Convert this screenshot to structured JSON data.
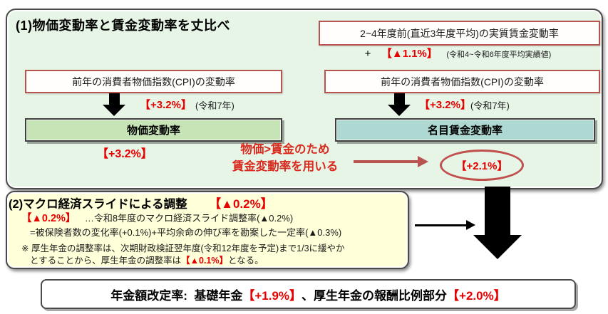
{
  "colors": {
    "section1_bg": "#e7f5e7",
    "section2_bg": "#ffffd9",
    "price_box_bg": "#c6e4b5",
    "wage_box_bg": "#aed9d2",
    "white_box_border": "#b85450",
    "red_text": "#e60000",
    "red_arrow": "#b85450",
    "oval_border": "#c0504d",
    "black": "#000000"
  },
  "section1": {
    "title": "(1)物価変動率と賃金変動率を丈比べ",
    "real_wage_box": "2~4年度前(直近3年度平均)の実質賃金変動率",
    "plus_sign": "+",
    "real_wage_value": "【▲1.1%】",
    "real_wage_note": "(令和4~令和6年度平均実績値)",
    "cpi_left_box": "前年の消費者物価指数(CPI)の変動率",
    "cpi_right_box": "前年の消費者物価指数(CPI)の変動率",
    "cpi_left_value": "【+3.2%】",
    "cpi_left_note": "(令和7年)",
    "cpi_right_value": "【+3.2%】",
    "cpi_right_note": "(令和7年)",
    "price_box": "物価変動率",
    "wage_box": "名目賃金変動率",
    "price_value": "【+3.2%】",
    "decision_line1": "物価>賃金のため",
    "decision_line2": "賃金変動率を用いる",
    "wage_value": "【+2.1%】"
  },
  "section2": {
    "title": "(2)マクロ経済スライドによる調整",
    "title_value": "【▲0.2%】",
    "line1_value": "【▲0.2%】",
    "line1_text": "…令和8年度のマクロ経済スライド調整率(▲0.2%)",
    "line2_text": "=被保険者数の変化率(+0.1%)+平均余命の伸び率を勘案した一定率(▲0.3%)",
    "note_line1": "※ 厚生年金の調整率は、次期財政検証翌年度(令和12年度を予定)まで1/3に緩やか",
    "note_line2_pre": "とすることから、厚生年金の調整率は",
    "note_line2_value": "【▲0.1%】",
    "note_line2_post": "となる。"
  },
  "result": {
    "label": "年金額改定率:  基礎年金",
    "basic_value": "【+1.9%】",
    "mid_label": "、厚生年金の報酬比例部分",
    "welfare_value": "【+2.0%】"
  }
}
